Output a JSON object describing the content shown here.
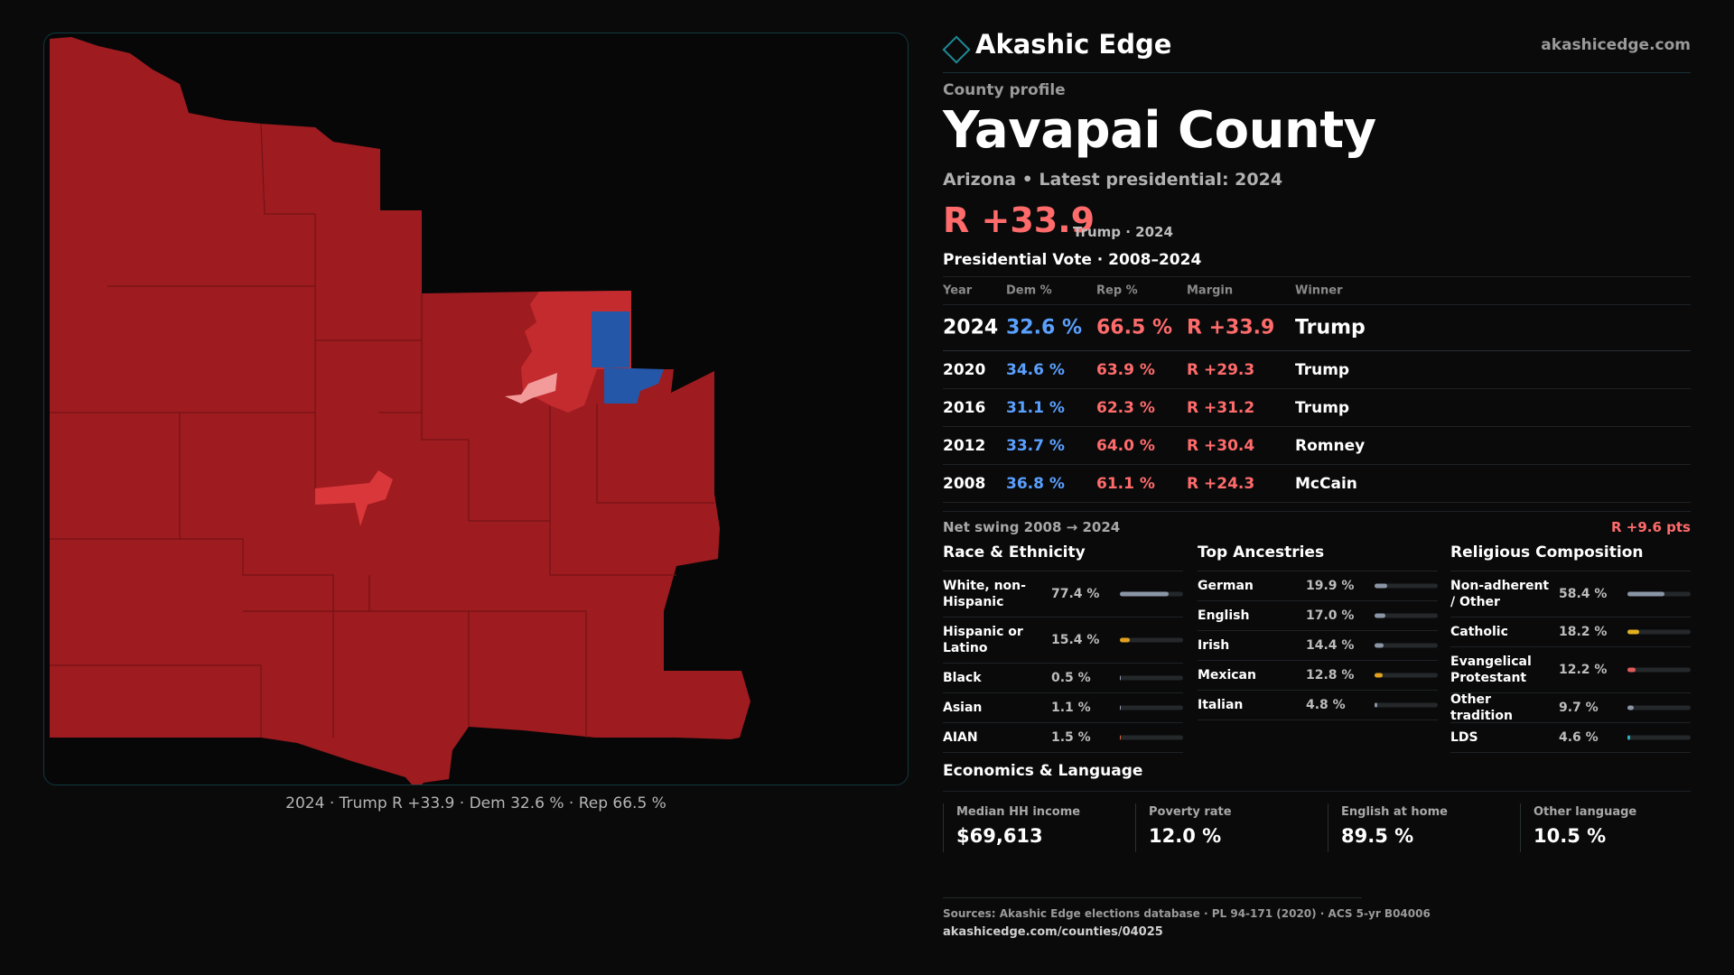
{
  "map": {
    "caption": "2024 · Trump R +33.9 · Dem 32.6 % · Rep 66.5 %",
    "colors": {
      "strong_rep": "#9e1b1f",
      "lean_rep": "#c42b2e",
      "light_rep": "#d9373a",
      "pink": "#f39a9a",
      "dem": "#2457a8"
    }
  },
  "header": {
    "brand": "Akashic Edge",
    "site": "akashicedge.com",
    "logo_icon": "diamond-icon"
  },
  "profile": {
    "kicker": "County profile",
    "name": "Yavapai County",
    "subtitle": "Arizona • Latest presidential: 2024",
    "margin": "R +33.9",
    "margin_sub": "Trump · 2024"
  },
  "presidential": {
    "title": "Presidential Vote · 2008–2024",
    "headers": {
      "year": "Year",
      "dem": "Dem %",
      "rep": "Rep %",
      "margin": "Margin",
      "winner": "Winner"
    },
    "rows": [
      {
        "year": "2024",
        "dem": "32.6 %",
        "rep": "66.5 %",
        "margin": "R +33.9",
        "winner": "Trump"
      },
      {
        "year": "2020",
        "dem": "34.6 %",
        "rep": "63.9 %",
        "margin": "R +29.3",
        "winner": "Trump"
      },
      {
        "year": "2016",
        "dem": "31.1 %",
        "rep": "62.3 %",
        "margin": "R +31.2",
        "winner": "Trump"
      },
      {
        "year": "2012",
        "dem": "33.7 %",
        "rep": "64.0 %",
        "margin": "R +30.4",
        "winner": "Romney"
      },
      {
        "year": "2008",
        "dem": "36.8 %",
        "rep": "61.1 %",
        "margin": "R +24.3",
        "winner": "McCain"
      }
    ],
    "swing_label": "Net swing 2008 → 2024",
    "swing_value": "R +9.6 pts"
  },
  "race": {
    "title": "Race & Ethnicity",
    "items": [
      {
        "label": "White, non-Hispanic",
        "value": "77.4 %",
        "pct": 77.4,
        "color": "#8a95a5"
      },
      {
        "label": "Hispanic or Latino",
        "value": "15.4 %",
        "pct": 15.4,
        "color": "#e0a020"
      },
      {
        "label": "Black",
        "value": "0.5 %",
        "pct": 0.5,
        "color": "#8a95a5"
      },
      {
        "label": "Asian",
        "value": "1.1 %",
        "pct": 1.1,
        "color": "#8a95a5"
      },
      {
        "label": "AIAN",
        "value": "1.5 %",
        "pct": 1.5,
        "color": "#d0633a"
      }
    ]
  },
  "ancestry": {
    "title": "Top Ancestries",
    "items": [
      {
        "label": "German",
        "value": "19.9 %",
        "pct": 19.9,
        "color": "#8a95a5"
      },
      {
        "label": "English",
        "value": "17.0 %",
        "pct": 17.0,
        "color": "#8a95a5"
      },
      {
        "label": "Irish",
        "value": "14.4 %",
        "pct": 14.4,
        "color": "#8a95a5"
      },
      {
        "label": "Mexican",
        "value": "12.8 %",
        "pct": 12.8,
        "color": "#e0a020"
      },
      {
        "label": "Italian",
        "value": "4.8 %",
        "pct": 4.8,
        "color": "#8a95a5"
      }
    ]
  },
  "religion": {
    "title": "Religious Composition",
    "items": [
      {
        "label": "Non-adherent / Other",
        "value": "58.4 %",
        "pct": 58.4,
        "color": "#8a95a5"
      },
      {
        "label": "Catholic",
        "value": "18.2 %",
        "pct": 18.2,
        "color": "#e0b020"
      },
      {
        "label": "Evangelical Protestant",
        "value": "12.2 %",
        "pct": 12.2,
        "color": "#e05a5a"
      },
      {
        "label": "Other tradition",
        "value": "9.7 %",
        "pct": 9.7,
        "color": "#8a95a5"
      },
      {
        "label": "LDS",
        "value": "4.6 %",
        "pct": 4.6,
        "color": "#2ab0c0"
      }
    ]
  },
  "economics": {
    "title": "Economics & Language",
    "items": [
      {
        "label": "Median HH income",
        "value": "$69,613"
      },
      {
        "label": "Poverty rate",
        "value": "12.0 %"
      },
      {
        "label": "English at home",
        "value": "89.5 %"
      },
      {
        "label": "Other language",
        "value": "10.5 %"
      }
    ]
  },
  "sources": {
    "line": "Sources: Akashic Edge elections database · PL 94-171 (2020) · ACS 5-yr B04006",
    "url": "akashicedge.com/counties/04025"
  }
}
